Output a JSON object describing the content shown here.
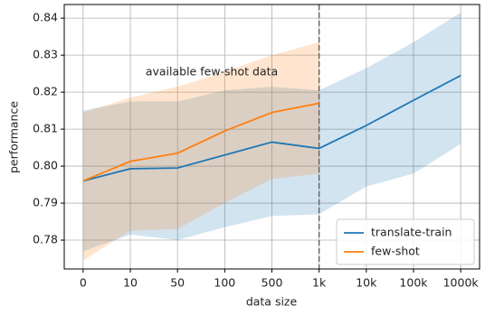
{
  "chart_data": {
    "type": "line",
    "x_label": "data size",
    "y_label": "performance",
    "annotation": "available few-shot data",
    "vline_category": "1k",
    "categories": [
      "0",
      "10",
      "50",
      "100",
      "500",
      "1k",
      "10k",
      "100k",
      "1000k"
    ],
    "ylim": [
      0.7722,
      0.8437
    ],
    "yticks": [
      0.78,
      0.79,
      {
        "value": 0.8,
        "label": "0.80"
      },
      0.81,
      0.82,
      0.83,
      0.84
    ],
    "grid": true,
    "legend": "lower right",
    "series": [
      {
        "name": "translate-train",
        "color": "#1f77b4",
        "values": [
          0.796,
          0.7993,
          0.7995,
          0.803,
          0.8065,
          0.8048,
          0.811,
          0.8178,
          0.8245
        ],
        "upper": [
          0.815,
          0.8175,
          0.8175,
          0.8205,
          0.8215,
          0.8205,
          0.8265,
          0.8335,
          0.8415
        ],
        "lower": [
          0.777,
          0.7815,
          0.78,
          0.7835,
          0.7865,
          0.787,
          0.7945,
          0.798,
          0.806
        ]
      },
      {
        "name": "few-shot",
        "color": "#ff7f0e",
        "values": [
          0.796,
          0.8013,
          0.8035,
          0.8095,
          0.8145,
          0.817,
          null,
          null,
          null
        ],
        "upper": [
          0.8145,
          0.8185,
          0.8215,
          0.8255,
          0.83,
          0.8335,
          null,
          null,
          null
        ],
        "lower": [
          0.7745,
          0.7825,
          0.783,
          0.79,
          0.7965,
          0.798,
          null,
          null,
          null
        ]
      }
    ]
  }
}
